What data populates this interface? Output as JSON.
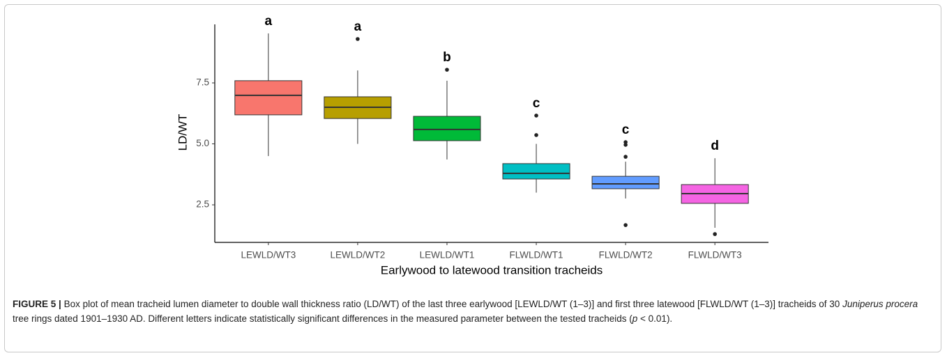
{
  "chart_data": {
    "type": "box",
    "ylabel": "LD/WT",
    "xlabel": "Earlywood to latewood transition tracheids",
    "categories": [
      "LEWLD/WT3",
      "LEWLD/WT2",
      "LEWLD/WT1",
      "FLWLD/WT1",
      "FLWLD/WT2",
      "FLWLD/WT3"
    ],
    "colors": [
      "#F8766D",
      "#B79F00",
      "#00BA38",
      "#00BFC4",
      "#619CFF",
      "#F564E3"
    ],
    "group_letters": [
      "a",
      "a",
      "b",
      "c",
      "c",
      "d"
    ],
    "boxes": [
      {
        "whislo": 4.5,
        "q1": 6.19,
        "med": 6.99,
        "q3": 7.59,
        "whishi": 9.53,
        "fliers": []
      },
      {
        "whislo": 5.0,
        "q1": 6.04,
        "med": 6.5,
        "q3": 6.93,
        "whishi": 8.01,
        "fliers": [
          9.3
        ]
      },
      {
        "whislo": 4.36,
        "q1": 5.13,
        "med": 5.59,
        "q3": 6.13,
        "whishi": 7.59,
        "fliers": [
          8.04
        ]
      },
      {
        "whislo": 3.0,
        "q1": 3.56,
        "med": 3.79,
        "q3": 4.19,
        "whishi": 5.0,
        "fliers": [
          6.16,
          5.36
        ]
      },
      {
        "whislo": 2.76,
        "q1": 3.16,
        "med": 3.36,
        "q3": 3.67,
        "whishi": 4.27,
        "fliers": [
          5.07,
          4.96,
          4.47,
          1.67
        ]
      },
      {
        "whislo": 1.56,
        "q1": 2.56,
        "med": 2.96,
        "q3": 3.33,
        "whishi": 4.41,
        "fliers": [
          1.3
        ]
      }
    ],
    "ylim": [
      0.96,
      9.9
    ],
    "yticks": [
      2.5,
      5.0,
      7.5
    ]
  },
  "caption": {
    "label": "FIGURE 5 |",
    "parts": [
      "Box plot of mean tracheid lumen diameter to double wall thickness ratio (LD/WT) of the last three earlywood [LEWLD/WT (1–3)] and first three latewood [FLWLD/WT (1–3)] tracheids of 30 ",
      "Juniperus procera",
      " tree rings dated 1901–1930 AD. Different letters indicate statistically significant differences in the measured parameter between the tested tracheids (",
      "p",
      " < 0.01)."
    ]
  }
}
